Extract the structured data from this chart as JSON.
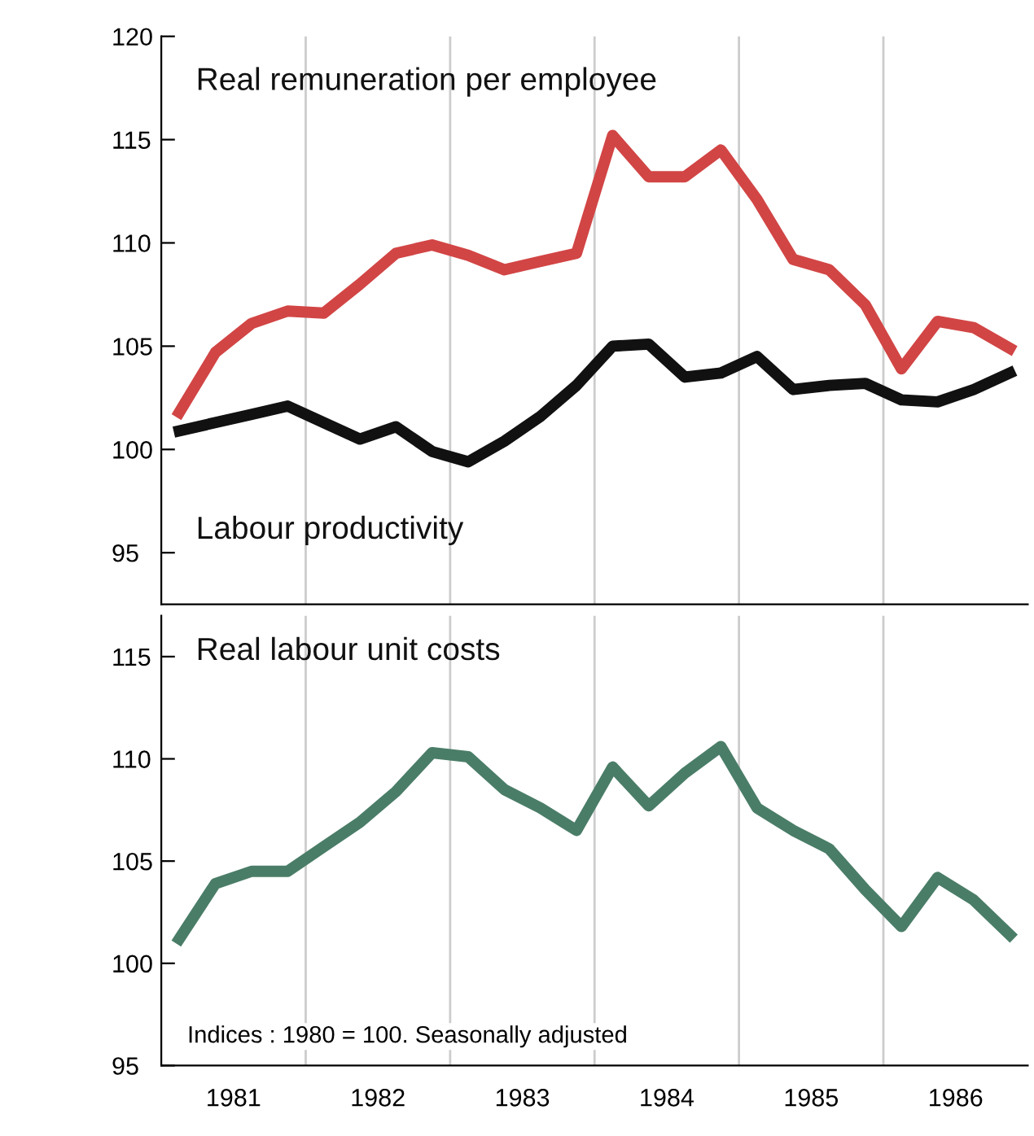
{
  "chart_data": [
    {
      "type": "line",
      "x": [
        1981.125,
        1981.375,
        1981.625,
        1981.875,
        1982.125,
        1982.375,
        1982.625,
        1982.875,
        1983.125,
        1983.375,
        1983.625,
        1983.875,
        1984.125,
        1984.375,
        1984.625,
        1984.875,
        1985.125,
        1985.375,
        1985.625,
        1985.875,
        1986.125,
        1986.375,
        1986.625,
        1986.875
      ],
      "series": [
        {
          "name": "Real remuneration per employee",
          "color": "#d24545",
          "values": [
            101.8,
            104.7,
            106.1,
            106.7,
            106.6,
            108.0,
            109.5,
            109.9,
            109.4,
            108.7,
            109.1,
            109.5,
            115.2,
            113.2,
            113.2,
            114.5,
            112.1,
            109.2,
            108.7,
            107.0,
            103.9,
            106.2,
            105.9,
            104.9
          ]
        },
        {
          "name": "Labour productivity",
          "color": "#111111",
          "values": [
            100.9,
            101.3,
            101.7,
            102.1,
            101.3,
            100.5,
            101.1,
            99.9,
            99.4,
            100.4,
            101.6,
            103.1,
            105.0,
            105.1,
            103.5,
            103.7,
            104.5,
            102.9,
            103.1,
            103.2,
            102.4,
            102.3,
            102.9,
            103.7
          ]
        }
      ],
      "xlim": [
        1981,
        1987
      ],
      "ylim": [
        92.5,
        120
      ],
      "yticks": [
        95,
        100,
        105,
        110,
        115,
        120
      ],
      "tick_labels": "y",
      "ref_lines": [
        {
          "axis": "x",
          "value": 1982,
          "color": "#cccccc"
        },
        {
          "axis": "x",
          "value": 1983,
          "color": "#cccccc"
        },
        {
          "axis": "x",
          "value": 1984,
          "color": "#cccccc"
        },
        {
          "axis": "x",
          "value": 1985,
          "color": "#cccccc"
        },
        {
          "axis": "x",
          "value": 1986,
          "color": "#cccccc"
        }
      ]
    },
    {
      "type": "line",
      "x": [
        1981.125,
        1981.375,
        1981.625,
        1981.875,
        1982.125,
        1982.375,
        1982.625,
        1982.875,
        1983.125,
        1983.375,
        1983.625,
        1983.875,
        1984.125,
        1984.375,
        1984.625,
        1984.875,
        1985.125,
        1985.375,
        1985.625,
        1985.875,
        1986.125,
        1986.375,
        1986.625,
        1986.875
      ],
      "series": [
        {
          "name": "Real labour unit costs",
          "color": "#4a7d68",
          "values": [
            101.2,
            103.9,
            104.5,
            104.5,
            105.7,
            106.9,
            108.4,
            110.3,
            110.1,
            108.5,
            107.6,
            106.5,
            109.6,
            107.7,
            109.3,
            110.6,
            107.6,
            106.5,
            105.6,
            103.6,
            101.8,
            104.2,
            103.1,
            101.4
          ]
        }
      ],
      "xlim": [
        1981,
        1987
      ],
      "ylim": [
        95,
        117
      ],
      "yticks": [
        95,
        100,
        105,
        110,
        115
      ],
      "xticks": [
        {
          "value": 1981.5,
          "label": "1981"
        },
        {
          "value": 1982.5,
          "label": "1982"
        },
        {
          "value": 1983.5,
          "label": "1983"
        },
        {
          "value": 1984.5,
          "label": "1984"
        },
        {
          "value": 1985.5,
          "label": "1985"
        },
        {
          "value": 1986.5,
          "label": "1986"
        }
      ],
      "annotations": [
        "Indices : 1980 = 100. Seasonally adjusted"
      ],
      "ref_lines": [
        {
          "axis": "x",
          "value": 1982,
          "color": "#cccccc"
        },
        {
          "axis": "x",
          "value": 1983,
          "color": "#cccccc"
        },
        {
          "axis": "x",
          "value": 1984,
          "color": "#cccccc"
        },
        {
          "axis": "x",
          "value": 1985,
          "color": "#cccccc"
        },
        {
          "axis": "x",
          "value": 1986,
          "color": "#cccccc"
        }
      ]
    }
  ]
}
